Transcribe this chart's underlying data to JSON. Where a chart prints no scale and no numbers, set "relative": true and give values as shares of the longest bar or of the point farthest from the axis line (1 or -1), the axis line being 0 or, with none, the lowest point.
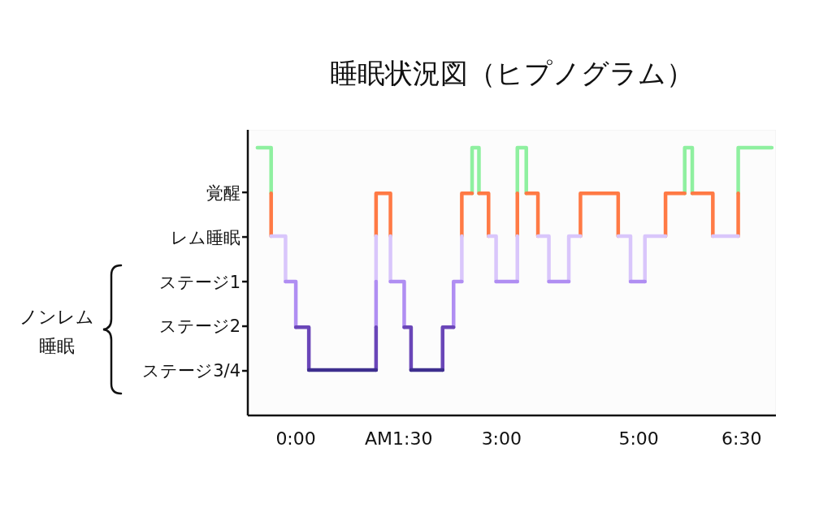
{
  "chart_data": {
    "type": "step",
    "title": "睡眠状況図（ヒプノグラム）",
    "annotations": [
      "ノンレム睡眠"
    ],
    "relative": true,
    "y_categories": [
      "覚醒",
      "レム睡眠",
      "ステージ1",
      "ステージ2",
      "ステージ3/4"
    ],
    "xlim": [
      -0.7,
      7.0
    ],
    "xticks": [
      {
        "value": 0,
        "label": "0:00"
      },
      {
        "value": 1.5,
        "label": "AM1:30"
      },
      {
        "value": 3,
        "label": "3:00"
      },
      {
        "value": 5,
        "label": "5:00"
      },
      {
        "value": 6.5,
        "label": "6:30"
      }
    ],
    "grid": false,
    "marker": "none",
    "line_style": "solid",
    "series": [
      {
        "color": "#8ff0a0",
        "x": [
          -0.56,
          -0.36,
          null,
          2.57,
          2.57,
          2.67,
          null,
          3.23,
          3.23,
          3.36,
          null,
          5.67,
          5.67,
          5.78,
          null,
          6.45,
          6.45,
          6.94
        ],
        "values": [
          1,
          0.83,
          null,
          0.83,
          1,
          0.83,
          null,
          0.83,
          1,
          0.83,
          null,
          0.83,
          1,
          0.83,
          null,
          0.83,
          1,
          1
        ]
      },
      {
        "color": "#ff7a45",
        "x": [
          -0.36,
          -0.36,
          null,
          1.17,
          1.17,
          1.38,
          null,
          2.42,
          2.42,
          2.57,
          null,
          2.67,
          2.81,
          null,
          3.23,
          3.23,
          null,
          3.36,
          3.53,
          null,
          4.15,
          4.15,
          4.7,
          null,
          5.39,
          5.39,
          5.67,
          null,
          5.78,
          6.08,
          null,
          6.45,
          6.45
        ],
        "values": [
          0.83,
          0.67,
          null,
          0.67,
          0.83,
          0.67,
          null,
          0.67,
          0.83,
          0.83,
          null,
          0.83,
          0.67,
          null,
          0.67,
          0.83,
          null,
          0.83,
          0.67,
          null,
          0.67,
          0.83,
          0.67,
          null,
          0.67,
          0.83,
          0.83,
          null,
          0.83,
          0.67,
          null,
          0.67,
          0.83
        ]
      },
      {
        "color": "#d9c6fb",
        "x": [
          -0.36,
          -0.15,
          null,
          1.17,
          1.17,
          null,
          1.38,
          1.38,
          null,
          2.42,
          2.42,
          null,
          2.81,
          2.92,
          null,
          3.23,
          3.23,
          null,
          3.53,
          3.69,
          null,
          3.98,
          3.98,
          4.15,
          null,
          4.7,
          4.88,
          null,
          5.09,
          5.09,
          5.39,
          null,
          6.08,
          6.45
        ],
        "values": [
          0.67,
          0.5,
          null,
          0.5,
          0.67,
          null,
          0.67,
          0.5,
          null,
          0.5,
          0.67,
          null,
          0.67,
          0.5,
          null,
          0.5,
          0.67,
          null,
          0.67,
          0.5,
          null,
          0.5,
          0.67,
          0.67,
          null,
          0.67,
          0.5,
          null,
          0.5,
          0.67,
          0.67,
          null,
          0.67,
          0.67
        ]
      },
      {
        "color": "#b08ef2",
        "x": [
          -0.15,
          0,
          null,
          1.17,
          1.17,
          null,
          1.38,
          1.58,
          null,
          2.3,
          2.3,
          2.42,
          null,
          2.92,
          3.23,
          null,
          3.69,
          3.98,
          null,
          4.88,
          5.09
        ],
        "values": [
          0.5,
          0.33,
          null,
          0.33,
          0.5,
          null,
          0.5,
          0.33,
          null,
          0.33,
          0.5,
          0.5,
          null,
          0.5,
          0.5,
          null,
          0.5,
          0.5,
          null,
          0.5,
          0.5
        ]
      },
      {
        "color": "#6a46b8",
        "x": [
          0,
          0.19,
          null,
          1.17,
          1.17,
          null,
          1.58,
          1.68,
          null,
          2.14,
          2.14,
          2.3
        ],
        "values": [
          0.33,
          0.17,
          null,
          0.17,
          0.33,
          null,
          0.33,
          0.17,
          null,
          0.17,
          0.33,
          0.33
        ]
      },
      {
        "color": "#3e2f8e",
        "x": [
          0.19,
          1.17,
          null,
          1.68,
          2.14
        ],
        "values": [
          0.17,
          0.17,
          null,
          0.17,
          0.17
        ]
      }
    ]
  }
}
